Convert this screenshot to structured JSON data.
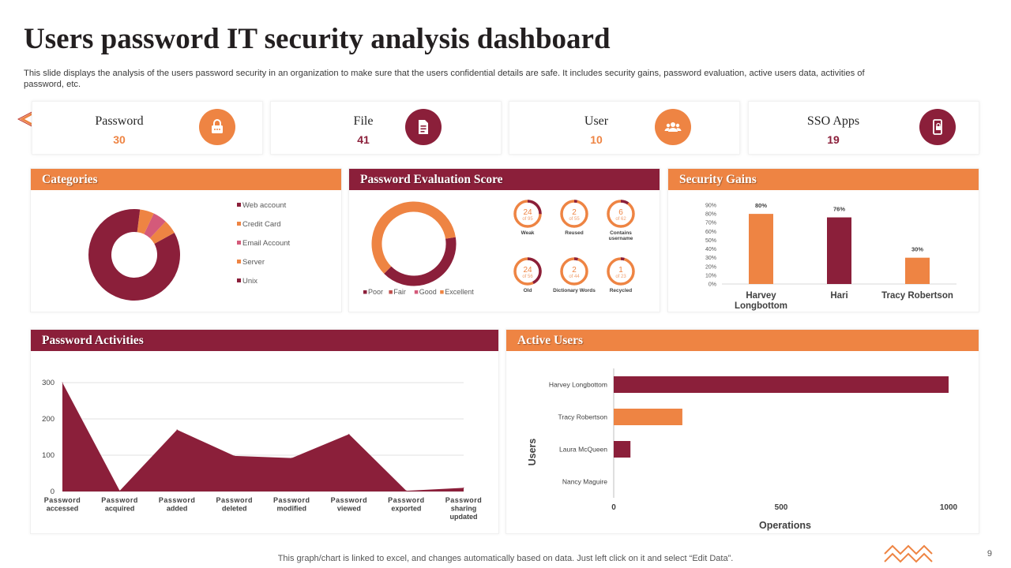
{
  "page": {
    "title": "Users password IT security analysis dashboard",
    "subtitle": "This slide displays the analysis of the users password security in an organization to make sure that the users confidential details  are safe. It includes security gains, password evaluation, active users data, activities of password, etc.",
    "footer": "This graph/chart is linked to excel,  and changes automatically based on data. Just left click on it and select “Edit Data”.",
    "page_number": "9"
  },
  "colors": {
    "orange": "#ee8443",
    "maroon": "#8b1f3a",
    "pink": "#d45a7a"
  },
  "kpis": [
    {
      "label": "Password",
      "value": "30",
      "icon": "password-lock-icon"
    },
    {
      "label": "File",
      "value": "41",
      "icon": "file-icon"
    },
    {
      "label": "User",
      "value": "10",
      "icon": "users-group-icon"
    },
    {
      "label": "SSO Apps",
      "value": "19",
      "icon": "mobile-lock-icon"
    }
  ],
  "panels": {
    "categories": "Categories",
    "password_evaluation": "Password Evaluation Score",
    "security_gains": "Security Gains",
    "password_activities": "Password Activities",
    "active_users": "Active Users"
  },
  "chart_data": [
    {
      "id": "categories",
      "type": "pie",
      "title": "Categories",
      "categories": [
        "Web account",
        "Credit Card",
        "Email Account",
        "Server",
        "Unix"
      ],
      "values": [
        83,
        5,
        5,
        5,
        2
      ],
      "legend_position": "right"
    },
    {
      "id": "password_evaluation_ring",
      "type": "pie",
      "title": "Password Evaluation Score",
      "categories": [
        "Poor",
        "Fair",
        "Good",
        "Excellent"
      ],
      "values": [
        40,
        0,
        0,
        60
      ],
      "legend_position": "bottom"
    },
    {
      "id": "password_evaluation_gauges",
      "type": "table",
      "items": [
        {
          "label": "Weak",
          "value": "24",
          "of": "of 95"
        },
        {
          "label": "Reused",
          "value": "2",
          "of": "of 55"
        },
        {
          "label": "Contains username",
          "value": "6",
          "of": "of 62"
        },
        {
          "label": "Old",
          "value": "24",
          "of": "of 56"
        },
        {
          "label": "Dictionary Words",
          "value": "2",
          "of": "of 44"
        },
        {
          "label": "Recycled",
          "value": "1",
          "of": "of 23"
        }
      ]
    },
    {
      "id": "security_gains",
      "type": "bar",
      "title": "Security Gains",
      "categories": [
        "Harvey Longbottom",
        "Hari",
        "Tracy Robertson"
      ],
      "values": [
        80,
        76,
        30
      ],
      "data_labels": [
        "80%",
        "76%",
        "30%"
      ],
      "y_ticks": [
        "0%",
        "10%",
        "20%",
        "30%",
        "40%",
        "50%",
        "60%",
        "70%",
        "80%",
        "90%"
      ],
      "ylim": [
        0,
        90
      ]
    },
    {
      "id": "password_activities",
      "type": "area",
      "title": "Password Activities",
      "categories": [
        "Password accessed",
        "Password acquired",
        "Password added",
        "Password deleted",
        "Password modified",
        "Password viewed",
        "Password exported",
        "Password sharing updated"
      ],
      "values": [
        300,
        2,
        170,
        98,
        92,
        158,
        2,
        10
      ],
      "y_ticks": [
        "0",
        "100",
        "200",
        "300"
      ],
      "ylim": [
        0,
        300
      ]
    },
    {
      "id": "active_users",
      "type": "bar",
      "orientation": "horizontal",
      "title": "Active Users",
      "categories": [
        "Harvey Longbottom",
        "Tracy Robertson",
        "Laura McQueen",
        "Nancy Maguire"
      ],
      "values": [
        1000,
        205,
        50,
        0
      ],
      "x_ticks": [
        "0",
        "500",
        "1000"
      ],
      "xlim": [
        0,
        1000
      ],
      "xlabel": "Operations",
      "ylabel": "Users"
    }
  ]
}
